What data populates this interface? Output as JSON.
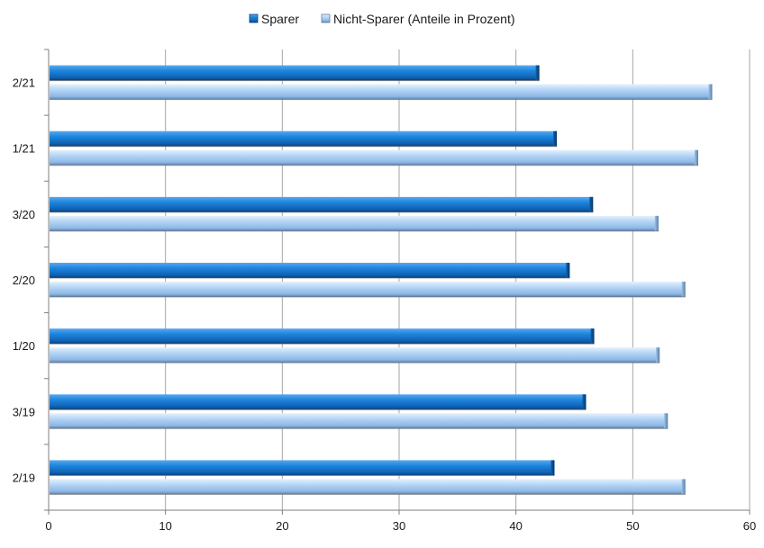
{
  "chart_data": {
    "type": "bar",
    "orientation": "horizontal",
    "categories": [
      "2/21",
      "1/21",
      "3/20",
      "2/20",
      "1/20",
      "3/19",
      "2/19"
    ],
    "series": [
      {
        "name": "Sparer",
        "values": [
          42,
          43.5,
          46.6,
          44.6,
          46.7,
          46,
          43.3
        ],
        "color": "#1b7fd8"
      },
      {
        "name": "Nicht-Sparer  (Anteile in Prozent)",
        "values": [
          56.8,
          55.6,
          52.2,
          54.5,
          52.3,
          53,
          54.5
        ],
        "color": "#a9cdf2"
      }
    ],
    "xlim": [
      0,
      60
    ],
    "xticks": [
      "0",
      "10",
      "20",
      "30",
      "40",
      "50",
      "60"
    ],
    "grid": true,
    "legend_position": "top"
  }
}
